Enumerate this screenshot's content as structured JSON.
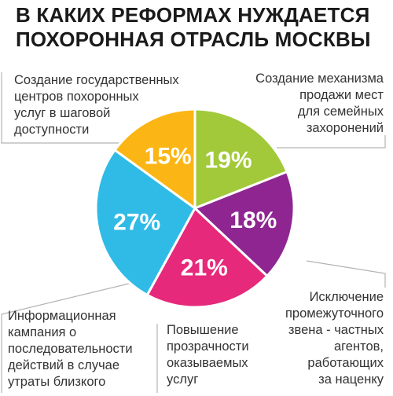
{
  "chart_data": {
    "type": "pie",
    "title_lines": [
      "В КАКИХ РЕФОРМАХ НУЖДАЕТСЯ",
      "ПОХОРОННАЯ ОТРАСЛЬ МОСКВЫ"
    ],
    "slices": [
      {
        "value": 19,
        "value_label": "19%",
        "color": "#a2c93a",
        "label": "Создание механизма\nпродажи мест\nдля семейных\nзахоронений"
      },
      {
        "value": 18,
        "value_label": "18%",
        "color": "#8e2591",
        "label": "Исключение\nпромежуточного\nзвена - частных\nагентов,\nработающих\nза наценку"
      },
      {
        "value": 21,
        "value_label": "21%",
        "color": "#e6297a",
        "label": "Повышение\nпрозрачности\nоказываемых\nуслуг"
      },
      {
        "value": 27,
        "value_label": "27%",
        "color": "#2fbbe6",
        "label": "Информационная\nкампания о\nпоследовательности\nдействий в случае\nутраты близкого"
      },
      {
        "value": 15,
        "value_label": "15%",
        "color": "#fbb615",
        "label": "Создание государственных\nцентров похоронных\nуслуг в шаговой\nдоступности"
      }
    ]
  }
}
